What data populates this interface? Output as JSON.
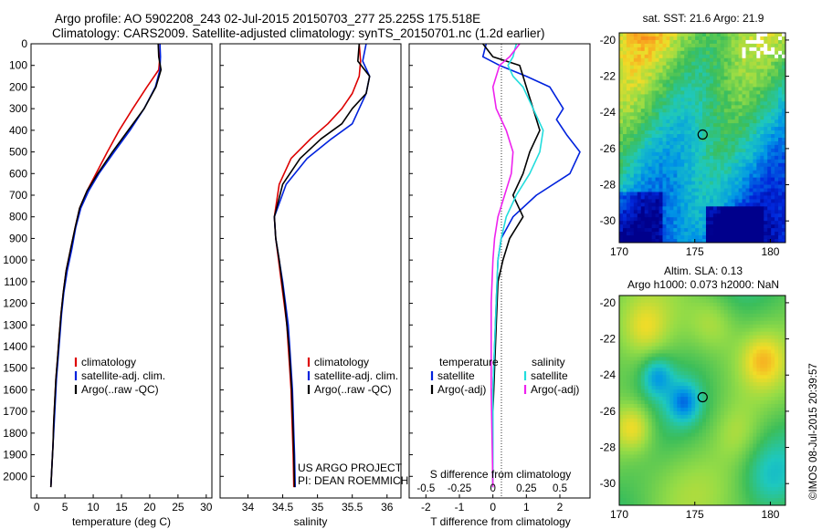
{
  "header": {
    "line1": "Argo profile: AO 5902208_243 02-Jul-2015 20150703_277 25.225S 175.518E",
    "line2": "Climatology: CARS2009. Satellite-adjusted climatology: synTS_20150701.nc (1.2d earlier)"
  },
  "colors": {
    "climatology": "#dd0000",
    "satellite": "#0022dd",
    "argo": "#000000",
    "sal_satellite": "#22dddd",
    "sal_argo": "#ee22ee"
  },
  "chart_data": [
    {
      "type": "line",
      "panel": "temperature",
      "xlabel": "temperature (deg C)",
      "ylabel": "",
      "xlim": [
        -1,
        31
      ],
      "ylim": [
        2100,
        0
      ],
      "xticks": [
        "0",
        "5",
        "10",
        "15",
        "20",
        "25",
        "30"
      ],
      "yticks": [
        "0",
        "100",
        "200",
        "300",
        "400",
        "500",
        "600",
        "700",
        "800",
        "900",
        "1000",
        "1100",
        "1200",
        "1300",
        "1400",
        "1500",
        "1600",
        "1700",
        "1800",
        "1900",
        "2000"
      ],
      "legend": [
        "climatology",
        "satellite-adj. clim.",
        "Argo(..raw -QC)"
      ],
      "series": [
        {
          "name": "climatology",
          "color": "#dd0000",
          "x": [
            21.8,
            21.8,
            21.6,
            19.5,
            17.0,
            14.6,
            12.5,
            10.5,
            8.9,
            7.6,
            6.8,
            6.0,
            5.2,
            4.7,
            4.3,
            4.0,
            3.7,
            3.4,
            3.2,
            3.0,
            2.9,
            2.7,
            2.5
          ],
          "y": [
            0,
            60,
            120,
            200,
            300,
            400,
            500,
            600,
            680,
            760,
            850,
            950,
            1050,
            1150,
            1250,
            1350,
            1450,
            1550,
            1650,
            1750,
            1850,
            1950,
            2050
          ]
        },
        {
          "name": "satellite-adj. clim.",
          "color": "#0022dd",
          "x": [
            21.8,
            21.9,
            21.8,
            21.0,
            19.0,
            16.5,
            13.7,
            11.0,
            9.2,
            7.8,
            6.9,
            6.2,
            5.4,
            4.8,
            4.4,
            4.1,
            3.8,
            3.5,
            3.3,
            3.1,
            2.9,
            2.7,
            2.5
          ],
          "y": [
            0,
            60,
            120,
            200,
            300,
            400,
            500,
            600,
            680,
            760,
            850,
            950,
            1050,
            1150,
            1250,
            1350,
            1450,
            1550,
            1650,
            1750,
            1850,
            1950,
            2050
          ]
        },
        {
          "name": "Argo(..raw -QC)",
          "color": "#000000",
          "x": [
            21.5,
            21.6,
            22.0,
            21.1,
            19.0,
            16.2,
            13.4,
            10.8,
            8.9,
            7.6,
            6.8,
            6.0,
            5.2,
            4.7,
            4.3,
            4.0,
            3.7,
            3.4,
            3.2,
            3.0,
            2.9,
            2.7,
            2.5
          ],
          "y": [
            0,
            60,
            120,
            200,
            300,
            400,
            500,
            600,
            680,
            760,
            850,
            950,
            1050,
            1150,
            1250,
            1350,
            1450,
            1550,
            1650,
            1750,
            1850,
            1950,
            2050
          ]
        }
      ]
    },
    {
      "type": "line",
      "panel": "salinity",
      "xlabel": "salinity",
      "xlim": [
        33.6,
        36.2
      ],
      "ylim": [
        2100,
        0
      ],
      "xticks": [
        "34",
        "34.5",
        "35",
        "35.5",
        "36"
      ],
      "legend": [
        "climatology",
        "satellite-adj. clim.",
        "Argo(..raw -QC)"
      ],
      "annotation": [
        "US ARGO PROJECT",
        "PI: DEAN ROEMMICH"
      ],
      "series": [
        {
          "name": "climatology",
          "color": "#dd0000",
          "x": [
            35.6,
            35.62,
            35.6,
            35.5,
            35.35,
            35.15,
            34.9,
            34.62,
            34.45,
            34.38,
            34.4,
            34.44,
            34.48,
            34.52,
            34.56,
            34.58,
            34.6,
            34.62,
            34.63,
            34.64,
            34.65,
            34.66
          ],
          "y": [
            0,
            80,
            150,
            230,
            300,
            370,
            440,
            530,
            650,
            800,
            900,
            1000,
            1100,
            1200,
            1300,
            1400,
            1500,
            1600,
            1700,
            1800,
            1900,
            2050
          ]
        },
        {
          "name": "satellite-adj. clim.",
          "color": "#0022dd",
          "x": [
            35.7,
            35.65,
            35.75,
            35.7,
            35.6,
            35.5,
            35.2,
            34.85,
            34.55,
            34.38,
            34.4,
            34.45,
            34.5,
            34.54,
            34.58,
            34.6,
            34.62,
            34.64,
            34.65,
            34.66,
            34.67,
            34.68
          ],
          "y": [
            0,
            80,
            150,
            230,
            300,
            370,
            440,
            530,
            650,
            800,
            900,
            1000,
            1100,
            1200,
            1300,
            1400,
            1500,
            1600,
            1700,
            1800,
            1900,
            2050
          ]
        },
        {
          "name": "Argo(..raw -QC)",
          "color": "#000000",
          "x": [
            35.6,
            35.58,
            35.75,
            35.7,
            35.5,
            35.35,
            35.05,
            34.75,
            34.5,
            34.38,
            34.4,
            34.45,
            34.49,
            34.53,
            34.56,
            34.59,
            34.61,
            34.63,
            34.64,
            34.65,
            34.66,
            34.67
          ],
          "y": [
            0,
            80,
            150,
            230,
            300,
            370,
            440,
            530,
            650,
            800,
            900,
            1000,
            1100,
            1200,
            1300,
            1400,
            1500,
            1600,
            1700,
            1800,
            1900,
            2050
          ]
        }
      ]
    },
    {
      "type": "line",
      "panel": "difference",
      "xlabel": "T difference from climatology",
      "xlabel_top": "S difference from climatology",
      "xlim": [
        -2.5,
        2.9
      ],
      "ylim": [
        2100,
        0
      ],
      "xticks": [
        "-2",
        "-1",
        "0",
        "1",
        "2"
      ],
      "xticks_top": [
        "-0.5",
        "-0.25",
        "0",
        "0.25",
        "0.5"
      ],
      "legend_headers": [
        "temperature",
        "salinity"
      ],
      "legend_temperature": [
        "satellite",
        "Argo(-adj)"
      ],
      "legend_salinity": [
        "satellite",
        "Argo(-adj)"
      ],
      "series": [
        {
          "name": "temperature satellite",
          "color": "#0022dd",
          "x": [
            -0.2,
            -0.3,
            0.2,
            1.0,
            1.7,
            2.1,
            1.9,
            2.2,
            2.6,
            2.3,
            1.3,
            0.6,
            0.25,
            0.15,
            0.1,
            0.05,
            0.0,
            0.0,
            0.0
          ],
          "y": [
            0,
            60,
            100,
            150,
            200,
            300,
            350,
            420,
            500,
            600,
            700,
            800,
            900,
            1000,
            1200,
            1400,
            1600,
            1800,
            2050
          ]
        },
        {
          "name": "temperature Argo(-adj)",
          "color": "#000000",
          "x": [
            -0.3,
            0.0,
            0.8,
            0.9,
            1.0,
            1.2,
            1.4,
            1.1,
            0.9,
            0.6,
            0.9,
            0.5,
            0.3,
            0.15,
            0.1,
            0.05,
            0.0,
            0.0
          ],
          "y": [
            0,
            60,
            100,
            150,
            200,
            300,
            400,
            500,
            600,
            700,
            800,
            900,
            1000,
            1100,
            1300,
            1500,
            1700,
            2050
          ]
        },
        {
          "name": "salinity satellite",
          "color": "#22dddd",
          "x": [
            0.7,
            0.6,
            0.45,
            0.6,
            0.9,
            1.2,
            1.5,
            1.4,
            1.1,
            0.7,
            0.4,
            0.25,
            0.15,
            0.1,
            0.05,
            0.0,
            0.0
          ],
          "y": [
            0,
            60,
            100,
            150,
            200,
            300,
            400,
            500,
            600,
            700,
            800,
            900,
            1000,
            1200,
            1400,
            1600,
            2050
          ]
        },
        {
          "name": "salinity Argo(-adj)",
          "color": "#ee22ee",
          "x": [
            0.8,
            0.5,
            0.2,
            0.0,
            0.1,
            0.4,
            0.6,
            0.55,
            0.35,
            0.15,
            0.05,
            0.0,
            -0.05,
            -0.05,
            -0.05,
            0.0
          ],
          "y": [
            0,
            60,
            100,
            200,
            300,
            400,
            500,
            600,
            700,
            800,
            900,
            1000,
            1200,
            1400,
            1600,
            2050
          ]
        }
      ]
    },
    {
      "type": "heatmap",
      "panel": "sst_map",
      "title": "sat. SST: 21.6  Argo: 21.9",
      "xlim": [
        170,
        181
      ],
      "ylim": [
        -31.2,
        -19.6
      ],
      "xticks": [
        "170",
        "175",
        "180"
      ],
      "yticks": [
        "-20",
        "-22",
        "-24",
        "-26",
        "-28",
        "-30"
      ],
      "marker": {
        "lon": 175.518,
        "lat": -25.225
      }
    },
    {
      "type": "heatmap",
      "panel": "sla_map",
      "title": "Altim. SLA: 0.13",
      "title2": "Argo h1000: 0.073 h2000: NaN",
      "xlim": [
        170,
        181
      ],
      "ylim": [
        -31.2,
        -19.6
      ],
      "xticks": [
        "170",
        "175",
        "180"
      ],
      "yticks": [
        "-20",
        "-22",
        "-24",
        "-26",
        "-28",
        "-30"
      ],
      "marker": {
        "lon": 175.518,
        "lat": -25.225
      },
      "side_label": "©IMOS 08-Jul-2015 20:39:57"
    }
  ]
}
